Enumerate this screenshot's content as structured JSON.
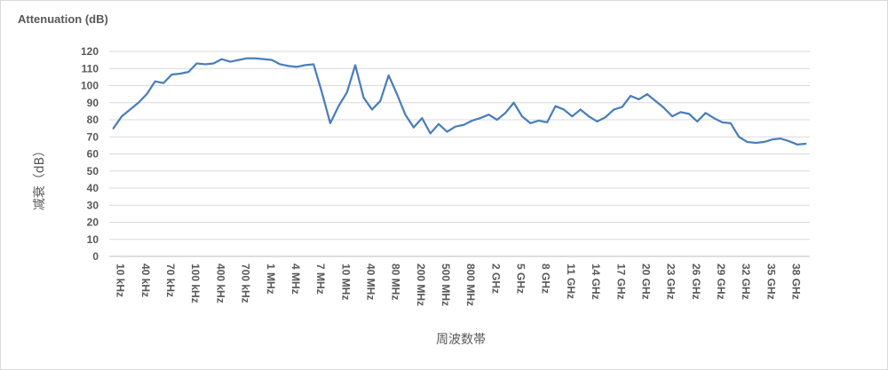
{
  "chart_data": {
    "type": "line",
    "title": "Attenuation (dB)",
    "ylabel": "减衰（dB）",
    "xlabel": "周波数帯",
    "ylim": [
      0,
      120
    ],
    "yticks": [
      0,
      10,
      20,
      30,
      40,
      50,
      60,
      70,
      80,
      90,
      100,
      110,
      120
    ],
    "grid": true,
    "line_color": "#4a7ebb",
    "tick_labels": [
      "10 kHz",
      "40 kHz",
      "70 kHz",
      "100 kHz",
      "400 kHz",
      "700 kHz",
      "1 MHz",
      "4 MHz",
      "7 MHz",
      "10 MHz",
      "40 MHz",
      "80 MHz",
      "200 MHz",
      "500 MHz",
      "800 MHz",
      "2 GHz",
      "5 GHz",
      "8 GHz",
      "11 GHz",
      "14 GHz",
      "17 GHz",
      "20 GHz",
      "23 GHz",
      "26 GHz",
      "29 GHz",
      "32 GHz",
      "35 GHz",
      "38 GHz"
    ],
    "series": [
      {
        "values": [
          75,
          82,
          86,
          90,
          95,
          102.5,
          101.5,
          106.5,
          107,
          108,
          113,
          112.5,
          113,
          115.5,
          114,
          115,
          116,
          116,
          115.5,
          115,
          112.5,
          111.5,
          111,
          112,
          112.5,
          96,
          78,
          88,
          96,
          112,
          93,
          86,
          91,
          106,
          95,
          83,
          75.5,
          81,
          72,
          77.5,
          73,
          76,
          77,
          79.5,
          81,
          83,
          80,
          84,
          90,
          82,
          78,
          79.5,
          78.5,
          88,
          86,
          82,
          86,
          82,
          79,
          81.5,
          86,
          87.5,
          94,
          92,
          95,
          91,
          87,
          82,
          84.5,
          83.5,
          79,
          84,
          81,
          78.5,
          78,
          70,
          67,
          66.5,
          67,
          68.5,
          69,
          67.5,
          65.5,
          66
        ]
      }
    ]
  }
}
